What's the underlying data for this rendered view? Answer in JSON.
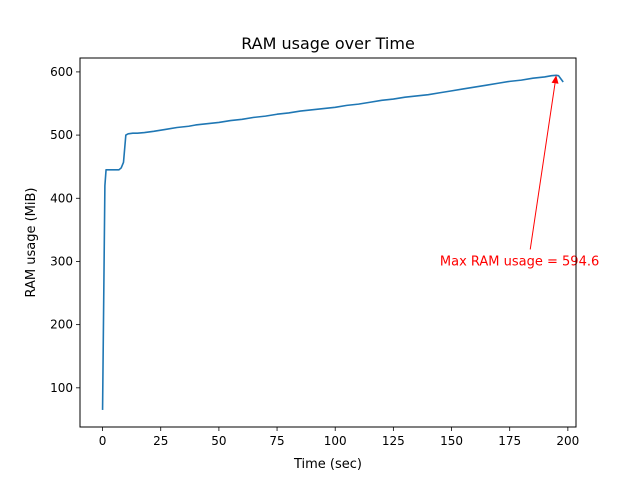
{
  "chart_data": {
    "type": "line",
    "title": "RAM usage over Time",
    "xlabel": "Time (sec)",
    "ylabel": "RAM usage (MiB)",
    "xlim": [
      -9.7,
      203.5
    ],
    "ylim": [
      38,
      622
    ],
    "grid": false,
    "legend": "none",
    "line_color": "#1f77b4",
    "annotation_color": "#ff0000",
    "xticks": [
      0,
      25,
      50,
      75,
      100,
      125,
      150,
      175,
      200
    ],
    "yticks": [
      100,
      200,
      300,
      400,
      500,
      600
    ],
    "series": [
      {
        "x": [
          0,
          1,
          1.5,
          2,
          3,
          5,
          7,
          8,
          9,
          10,
          11,
          13,
          15,
          18,
          22,
          27,
          32,
          37,
          40,
          45,
          50,
          55,
          60,
          65,
          70,
          75,
          80,
          85,
          90,
          95,
          100,
          105,
          110,
          115,
          120,
          125,
          130,
          135,
          140,
          145,
          150,
          155,
          160,
          165,
          170,
          175,
          180,
          185,
          190,
          193,
          195,
          196,
          197,
          198
        ],
        "y": [
          65,
          420,
          445,
          445,
          445,
          445,
          445,
          448,
          457,
          500,
          502,
          503,
          503,
          504,
          506,
          509,
          512,
          514,
          516,
          518,
          520,
          523,
          525,
          528,
          530,
          533,
          535,
          538,
          540,
          542,
          544,
          547,
          549,
          552,
          555,
          557,
          560,
          562,
          564,
          567,
          570,
          573,
          576,
          579,
          582,
          585,
          587,
          590,
          592,
          594,
          594.6,
          594,
          589,
          584
        ]
      }
    ],
    "annotation": {
      "text": "Max RAM usage = 594.6",
      "point": [
        195,
        594.6
      ],
      "text_position": [
        145,
        300
      ]
    }
  }
}
